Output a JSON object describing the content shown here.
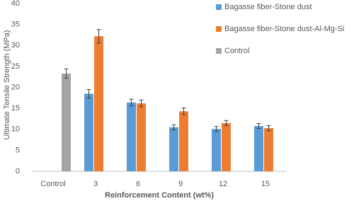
{
  "chart_data": {
    "type": "bar",
    "x_label": "Reinforcement Content (wt%)",
    "y_label": "Ultimate Tensile Strength (MPa)",
    "categories": [
      "Control",
      "3",
      "6",
      "9",
      "12",
      "15"
    ],
    "series": [
      {
        "name": "Bagasse fiber-Stone dust",
        "color": "#5b9bd5",
        "values": [
          null,
          18.5,
          16.4,
          10.5,
          10.1,
          10.8
        ],
        "errors": [
          null,
          1.0,
          0.8,
          0.6,
          0.6,
          0.6
        ]
      },
      {
        "name": "Bagasse fiber-Stone dust-Al-Mg-Si",
        "color": "#ed7d31",
        "values": [
          null,
          32.2,
          16.2,
          14.3,
          11.5,
          10.3
        ],
        "errors": [
          null,
          1.6,
          0.8,
          0.8,
          0.6,
          0.6
        ]
      },
      {
        "name": "Control",
        "color": "#a5a5a5",
        "values": [
          23.3,
          null,
          null,
          null,
          null,
          null
        ],
        "errors": [
          1.1,
          null,
          null,
          null,
          null,
          null
        ]
      }
    ],
    "ylim": [
      0,
      40
    ],
    "yticks": [
      0,
      5,
      10,
      15,
      20,
      25,
      30,
      35,
      40
    ],
    "grid": false,
    "legend": "top-right"
  }
}
